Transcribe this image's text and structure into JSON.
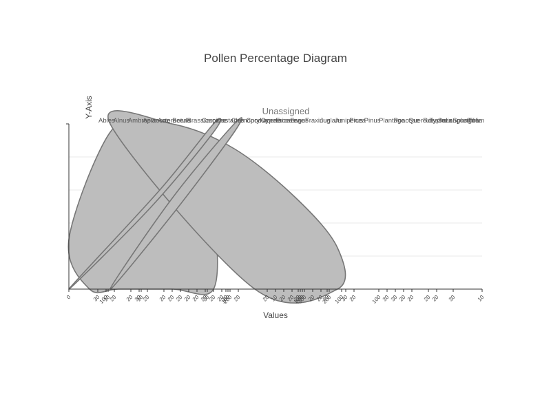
{
  "chart_data": {
    "type": "area",
    "title": "Pollen Percentage Diagram",
    "subtitle": "Unassigned",
    "xlabel": "Values",
    "ylabel": "Y-Axis",
    "xlim": [
      0,
      100
    ],
    "ylim": [
      0,
      1
    ],
    "grid": true,
    "colors": {
      "fill": "#bdbdbd",
      "stroke": "#777777",
      "axis": "#333333",
      "grid": "#e8e8e8"
    },
    "taxa": [
      "Abies",
      "Alnus",
      "Ambrosia",
      "Apiaceae",
      "Asteraceae",
      "Betula",
      "Brassicaceae",
      "Carpinus",
      "Castanea",
      "Chenopodiaceae",
      "Corylus",
      "Cyperaceae",
      "Ericaceae",
      "Fagus",
      "Fraxinus",
      "Juglans",
      "Juniperus",
      "Picea",
      "Pinus",
      "Plantago",
      "Poaceae",
      "Quercus",
      "Rosaceae",
      "Salix",
      "Sphagnum",
      "Tilia",
      "Typha angustifolia"
    ],
    "series": [
      {
        "x": [
          0,
          10,
          20,
          30,
          35,
          35,
          25,
          12,
          5
        ],
        "y": [
          0.3,
          0.95,
          1.0,
          0.85,
          0.45,
          0.0,
          0.0,
          0.0,
          0.0
        ]
      },
      {
        "x": [
          10,
          25,
          40,
          55,
          65,
          65,
          45
        ],
        "y": [
          1.0,
          1.0,
          0.85,
          0.55,
          0.25,
          0.0,
          0.0
        ]
      },
      {
        "x": [
          0,
          22,
          35,
          35,
          20
        ],
        "y": [
          0.0,
          0.6,
          1.0,
          0.95,
          0.5
        ]
      },
      {
        "x": [
          10,
          25,
          40,
          40,
          25
        ],
        "y": [
          0.0,
          0.55,
          1.0,
          0.95,
          0.45
        ]
      }
    ],
    "ticks": [
      {
        "x": 0,
        "label": "0"
      },
      {
        "x": 7,
        "label": "30"
      },
      {
        "x": 9,
        "label": "100"
      },
      {
        "x": 9.5,
        "label": "10"
      },
      {
        "x": 11,
        "label": "20"
      },
      {
        "x": 15,
        "label": "20"
      },
      {
        "x": 17,
        "label": "30"
      },
      {
        "x": 17.5,
        "label": "10"
      },
      {
        "x": 19,
        "label": "20"
      },
      {
        "x": 23,
        "label": "20"
      },
      {
        "x": 25,
        "label": "20"
      },
      {
        "x": 27,
        "label": "20"
      },
      {
        "x": 29,
        "label": "20"
      },
      {
        "x": 31,
        "label": "20"
      },
      {
        "x": 33,
        "label": "20"
      },
      {
        "x": 33.5,
        "label": "30"
      },
      {
        "x": 35,
        "label": "20"
      },
      {
        "x": 37,
        "label": "20"
      },
      {
        "x": 38,
        "label": "30"
      },
      {
        "x": 38.5,
        "label": "100"
      },
      {
        "x": 39,
        "label": "200"
      },
      {
        "x": 41,
        "label": "20"
      },
      {
        "x": 48,
        "label": "20"
      },
      {
        "x": 50,
        "label": "10"
      },
      {
        "x": 52,
        "label": "20"
      },
      {
        "x": 54,
        "label": "20"
      },
      {
        "x": 55.5,
        "label": "20"
      },
      {
        "x": 56,
        "label": "100"
      },
      {
        "x": 56.5,
        "label": "200"
      },
      {
        "x": 57,
        "label": "300"
      },
      {
        "x": 59,
        "label": "20"
      },
      {
        "x": 61,
        "label": "20"
      },
      {
        "x": 62.5,
        "label": "20"
      },
      {
        "x": 63,
        "label": "200"
      },
      {
        "x": 66,
        "label": "100"
      },
      {
        "x": 67,
        "label": "30"
      },
      {
        "x": 69,
        "label": "20"
      },
      {
        "x": 75,
        "label": "100"
      },
      {
        "x": 77,
        "label": "30"
      },
      {
        "x": 79,
        "label": "30"
      },
      {
        "x": 81,
        "label": "20"
      },
      {
        "x": 83,
        "label": "20"
      },
      {
        "x": 87,
        "label": "20"
      },
      {
        "x": 89,
        "label": "20"
      },
      {
        "x": 93,
        "label": "30"
      },
      {
        "x": 100,
        "label": "10"
      }
    ]
  }
}
